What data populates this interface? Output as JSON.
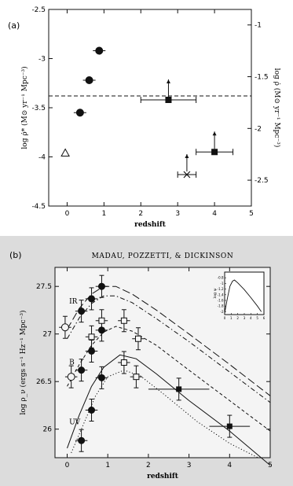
{
  "chart_data": [
    {
      "panel_label": "(a)",
      "type": "scatter",
      "xlabel": "redshift",
      "ylabel_left": "log ρ̇* (M⊙ yr⁻¹ Mpc⁻³)",
      "ylabel_right": "log ρ̇ (M⊙ yr⁻¹ Mpc⁻³)",
      "xlim": [
        -0.5,
        5
      ],
      "ylim_left": [
        -4.5,
        -2.5
      ],
      "ylim_right": [
        -2.75,
        -0.85
      ],
      "xticks": [
        "0",
        "1",
        "2",
        "3",
        "4",
        "5"
      ],
      "yticks_left": [
        "-4.5",
        "-4",
        "-3.5",
        "-3",
        "-2.5"
      ],
      "yticks_right": [
        "-2.5",
        "-2",
        "-1.5",
        "-1"
      ],
      "hline_y": -3.38,
      "series": [
        {
          "marker": "filled-circle",
          "points": [
            {
              "x": 0.35,
              "y": -3.55
            },
            {
              "x": 0.6,
              "y": -3.22
            },
            {
              "x": 0.87,
              "y": -2.92
            }
          ]
        },
        {
          "marker": "open-triangle",
          "points": [
            {
              "x": -0.05,
              "y": -3.96
            }
          ]
        },
        {
          "marker": "filled-square",
          "points": [
            {
              "x": 2.75,
              "y": -3.42,
              "xerr": 0.75,
              "lower_limit": true
            },
            {
              "x": 4.0,
              "y": -3.95,
              "xerr": 0.5,
              "lower_limit": true
            }
          ]
        },
        {
          "marker": "cross",
          "points": [
            {
              "x": 3.25,
              "y": -4.18,
              "xerr": 0.25,
              "lower_limit": true
            }
          ]
        }
      ]
    },
    {
      "panel_label": "(b)",
      "type": "scatter",
      "header": "MADAU, POZZETTI, & DICKINSON",
      "xlabel": "redshift",
      "ylabel": "log ρ_ν (ergs s⁻¹ Hz⁻¹ Mpc⁻³)",
      "xlim": [
        -0.3,
        5
      ],
      "ylim": [
        25.7,
        27.7
      ],
      "xticks": [
        "0",
        "1",
        "2",
        "3",
        "4",
        "5"
      ],
      "yticks": [
        "26",
        "26.5",
        "27",
        "27.5"
      ],
      "band_labels": [
        {
          "text": "IR",
          "x": 0.05,
          "y": 27.32
        },
        {
          "text": "B",
          "x": 0.05,
          "y": 26.68
        },
        {
          "text": "UV",
          "x": 0.05,
          "y": 26.05
        }
      ],
      "series": [
        {
          "band": "IR",
          "marker": "filled-circle",
          "points": [
            {
              "x": 0.35,
              "y": 27.24
            },
            {
              "x": 0.6,
              "y": 27.37
            },
            {
              "x": 0.85,
              "y": 27.5
            }
          ]
        },
        {
          "band": "B",
          "marker": "filled-circle",
          "points": [
            {
              "x": 0.35,
              "y": 26.62
            },
            {
              "x": 0.6,
              "y": 26.82
            },
            {
              "x": 0.85,
              "y": 27.04
            }
          ]
        },
        {
          "band": "UV",
          "marker": "filled-circle",
          "points": [
            {
              "x": 0.35,
              "y": 25.88
            },
            {
              "x": 0.6,
              "y": 26.2
            },
            {
              "x": 0.85,
              "y": 26.54
            }
          ]
        },
        {
          "band": "mixed",
          "marker": "open-circle",
          "points": [
            {
              "x": -0.05,
              "y": 27.07
            },
            {
              "x": 0.1,
              "y": 26.55
            }
          ]
        },
        {
          "band": "open",
          "marker": "open-square",
          "points": [
            {
              "x": 0.6,
              "y": 26.97
            },
            {
              "x": 0.85,
              "y": 27.14
            },
            {
              "x": 1.4,
              "y": 27.14
            },
            {
              "x": 1.4,
              "y": 26.7
            },
            {
              "x": 1.75,
              "y": 26.95
            },
            {
              "x": 1.7,
              "y": 26.55
            }
          ]
        },
        {
          "band": "high-z",
          "marker": "filled-square",
          "points": [
            {
              "x": 2.75,
              "y": 26.42,
              "xerr": 0.75
            },
            {
              "x": 4.0,
              "y": 26.03,
              "xerr": 0.5
            }
          ]
        }
      ],
      "curves": [
        {
          "style": "long-dash",
          "points": [
            [
              0,
              27.05
            ],
            [
              0.3,
              27.27
            ],
            [
              0.6,
              27.42
            ],
            [
              0.9,
              27.5
            ],
            [
              1.2,
              27.5
            ],
            [
              1.6,
              27.42
            ],
            [
              2.2,
              27.25
            ],
            [
              3,
              27.0
            ],
            [
              4,
              26.68
            ],
            [
              5,
              26.35
            ]
          ]
        },
        {
          "style": "dash-dot",
          "points": [
            [
              0,
              26.95
            ],
            [
              0.3,
              27.17
            ],
            [
              0.6,
              27.32
            ],
            [
              0.9,
              27.4
            ],
            [
              1.2,
              27.4
            ],
            [
              1.6,
              27.33
            ],
            [
              2.2,
              27.16
            ],
            [
              3,
              26.92
            ],
            [
              4,
              26.6
            ],
            [
              5,
              26.28
            ]
          ]
        },
        {
          "style": "short-dash",
          "points": [
            [
              0,
              26.45
            ],
            [
              0.3,
              26.68
            ],
            [
              0.6,
              26.88
            ],
            [
              0.9,
              27.02
            ],
            [
              1.2,
              27.08
            ],
            [
              1.6,
              27.03
            ],
            [
              2.2,
              26.88
            ],
            [
              3,
              26.62
            ],
            [
              4,
              26.3
            ],
            [
              5,
              25.98
            ]
          ]
        },
        {
          "style": "solid",
          "points": [
            [
              0,
              25.8
            ],
            [
              0.3,
              26.15
            ],
            [
              0.6,
              26.45
            ],
            [
              0.9,
              26.65
            ],
            [
              1.3,
              26.78
            ],
            [
              1.7,
              26.74
            ],
            [
              2.2,
              26.58
            ],
            [
              3,
              26.3
            ],
            [
              4,
              25.98
            ],
            [
              5,
              25.62
            ]
          ]
        },
        {
          "style": "dotted",
          "points": [
            [
              0.1,
              25.75
            ],
            [
              0.4,
              26.05
            ],
            [
              0.7,
              26.35
            ],
            [
              1.0,
              26.55
            ],
            [
              1.4,
              26.62
            ],
            [
              1.8,
              26.56
            ],
            [
              2.4,
              26.36
            ],
            [
              3.2,
              26.08
            ],
            [
              4,
              25.85
            ],
            [
              4.7,
              25.7
            ]
          ]
        }
      ],
      "inset": {
        "ylabel": "log ψ",
        "xlim": [
          0,
          6
        ],
        "ylim": [
          -2.1,
          -0.6
        ],
        "xticks": [
          "0",
          "1",
          "2",
          "3",
          "4",
          "5",
          "6"
        ],
        "yticks": [
          "-0.8",
          "-1",
          "-1.2",
          "-1.4",
          "-1.6",
          "-1.8",
          "-2"
        ],
        "curve": [
          [
            0,
            -2.05
          ],
          [
            0.4,
            -1.55
          ],
          [
            0.8,
            -1.1
          ],
          [
            1.2,
            -0.92
          ],
          [
            1.5,
            -0.88
          ],
          [
            2,
            -0.98
          ],
          [
            3,
            -1.22
          ],
          [
            4,
            -1.5
          ],
          [
            5,
            -1.8
          ],
          [
            5.6,
            -2.0
          ]
        ]
      }
    }
  ]
}
